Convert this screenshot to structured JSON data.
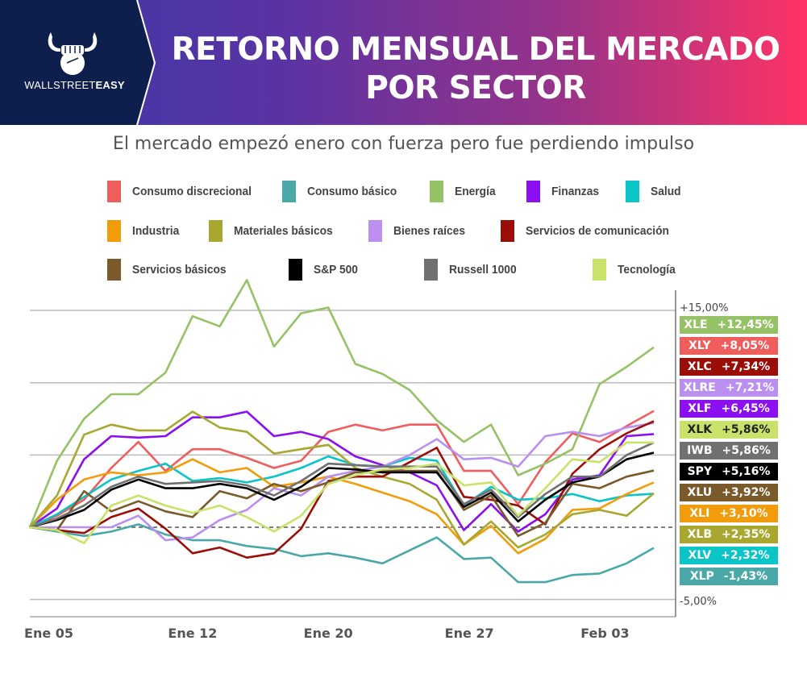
{
  "header": {
    "brand_prefix": "WALLSTREET",
    "brand_suffix": "EASY",
    "title_line1": "RETORNO MENSUAL DEL MERCADO",
    "title_line2": "POR SECTOR"
  },
  "chart_data": {
    "type": "line",
    "title": "RETORNO MENSUAL DEL MERCADO POR SECTOR",
    "subtitle": "El mercado empezó enero con fuerza pero fue perdiendo impulso",
    "xlabel": "",
    "ylabel": "",
    "ylim": [
      -5,
      15
    ],
    "y_tick_labels": [
      "+15,00%",
      "-5,00%"
    ],
    "gridlines": [
      -5,
      0,
      5,
      10,
      15
    ],
    "zero_line": "dashed",
    "x_tick_labels": [
      "Ene 05",
      "Ene 12",
      "Ene 20",
      "Ene 27",
      "Feb 03"
    ],
    "x_tick_indices": [
      0.7,
      6,
      11,
      16.2,
      21.2
    ],
    "num_points": 24,
    "legend_position": "top",
    "series": [
      {
        "name": "Consumo discrecional",
        "ticker": "XLY",
        "final": "+8,05%",
        "color": "#f05d5d",
        "values": [
          0,
          0.8,
          1.9,
          4.1,
          5.9,
          3.9,
          5.4,
          5.4,
          4.8,
          4.1,
          4.6,
          6.6,
          7.1,
          6.7,
          7.1,
          7.1,
          3.9,
          3.9,
          1.6,
          4.5,
          6.5,
          5.9,
          7.0,
          8.05
        ]
      },
      {
        "name": "Consumo básico",
        "ticker": "XLP",
        "final": "-1,43%",
        "color": "#4aa8a8",
        "values": [
          0,
          -0.3,
          -0.6,
          -0.3,
          0.2,
          -0.5,
          -0.9,
          -0.9,
          -1.3,
          -1.5,
          -2.0,
          -1.8,
          -2.1,
          -2.5,
          -1.6,
          -0.7,
          -2.2,
          -2.1,
          -3.8,
          -3.8,
          -3.3,
          -3.2,
          -2.5,
          -1.43
        ]
      },
      {
        "name": "Energía",
        "ticker": "XLE",
        "final": "+12,45%",
        "color": "#96c266",
        "values": [
          0,
          4.6,
          7.5,
          9.2,
          9.2,
          10.7,
          14.6,
          13.9,
          17.1,
          12.5,
          14.8,
          15.2,
          11.3,
          10.6,
          9.5,
          7.4,
          5.9,
          7.1,
          3.6,
          4.4,
          5.4,
          9.9,
          11.1,
          12.45
        ]
      },
      {
        "name": "Finanzas",
        "ticker": "XLF",
        "final": "+6,45%",
        "color": "#8b0ff0",
        "values": [
          0,
          1.3,
          4.7,
          6.3,
          6.2,
          6.3,
          7.6,
          7.6,
          8.0,
          6.3,
          6.6,
          6.1,
          4.9,
          4.3,
          3.8,
          2.9,
          -0.2,
          1.6,
          -0.3,
          0.9,
          3.3,
          3.6,
          6.3,
          6.45
        ]
      },
      {
        "name": "Salud",
        "ticker": "XLV",
        "final": "+2,32%",
        "color": "#0bc4c8",
        "values": [
          0,
          0.9,
          2.1,
          3.3,
          3.9,
          4.4,
          3.2,
          3.4,
          3.1,
          3.5,
          4.1,
          4.9,
          4.3,
          4.2,
          4.8,
          4.6,
          1.5,
          2.8,
          1.9,
          2.0,
          2.3,
          1.8,
          2.2,
          2.32
        ]
      },
      {
        "name": "Industria",
        "ticker": "XLI",
        "final": "+3,10%",
        "color": "#f29c0c",
        "values": [
          0,
          1.9,
          3.3,
          3.8,
          3.6,
          3.8,
          4.7,
          3.8,
          4.1,
          2.8,
          3.1,
          3.5,
          3.0,
          2.4,
          1.8,
          0.9,
          -1.2,
          0.1,
          -1.8,
          -0.8,
          1.2,
          1.3,
          2.3,
          3.1
        ]
      },
      {
        "name": "Materiales básicos",
        "ticker": "XLB",
        "final": "+2,35%",
        "color": "#a8a830",
        "values": [
          0,
          2.2,
          6.4,
          7.1,
          6.7,
          6.7,
          8.0,
          6.9,
          6.6,
          5.1,
          5.4,
          5.7,
          4.1,
          3.5,
          3.0,
          1.9,
          -1.2,
          0.4,
          -1.4,
          -0.5,
          0.9,
          1.2,
          0.8,
          2.35
        ]
      },
      {
        "name": "Bienes raíces",
        "ticker": "XLRE",
        "final": "+7,21%",
        "color": "#bb8ff0",
        "values": [
          0,
          0,
          0,
          0,
          0.8,
          -0.9,
          -0.7,
          0.5,
          1.2,
          2.7,
          2.2,
          3.5,
          3.9,
          4.2,
          5.0,
          6.1,
          4.7,
          4.8,
          4.2,
          6.3,
          6.6,
          6.3,
          6.9,
          7.21
        ]
      },
      {
        "name": "Servicios de comunicación",
        "ticker": "XLC",
        "final": "+7,34%",
        "color": "#9b0e08",
        "values": [
          0,
          -0.2,
          -0.4,
          0.7,
          1.3,
          -0.1,
          -1.8,
          -1.4,
          -2.1,
          -1.8,
          -0.1,
          3.2,
          3.5,
          3.5,
          4.5,
          5.5,
          2.1,
          1.9,
          1.5,
          0.2,
          3.7,
          5.4,
          6.5,
          7.34
        ]
      },
      {
        "name": "Servicios básicos",
        "ticker": "XLU",
        "final": "+3,92%",
        "color": "#7a5a2a",
        "values": [
          0,
          -0.2,
          2.5,
          1.1,
          1.8,
          1.1,
          0.7,
          2.5,
          2.0,
          3.0,
          2.5,
          3.1,
          3.8,
          3.9,
          3.9,
          3.9,
          1.2,
          2.2,
          -0.6,
          0.3,
          3.0,
          2.7,
          3.5,
          3.92
        ]
      },
      {
        "name": "S&P 500",
        "ticker": "SPY",
        "final": "+5,16%",
        "color": "#000000",
        "values": [
          0,
          0.5,
          1.2,
          2.6,
          3.3,
          2.7,
          2.7,
          3.0,
          2.7,
          1.9,
          2.8,
          4.1,
          4.0,
          3.8,
          3.8,
          3.8,
          1.4,
          2.4,
          0.4,
          1.9,
          3.1,
          3.5,
          4.7,
          5.16
        ]
      },
      {
        "name": "Russell 1000",
        "ticker": "IWB",
        "final": "+5,86%",
        "color": "#707070",
        "values": [
          0,
          0.6,
          1.5,
          2.8,
          3.5,
          3.0,
          3.1,
          3.2,
          2.9,
          2.2,
          3.2,
          4.4,
          4.3,
          4.2,
          4.2,
          4.2,
          1.6,
          2.6,
          0.7,
          2.3,
          3.5,
          3.5,
          5.0,
          5.86
        ]
      },
      {
        "name": "Tecnología",
        "ticker": "XLK",
        "final": "+5,86%",
        "color": "#c8e26a",
        "values": [
          0,
          -0.2,
          -1.1,
          1.5,
          2.2,
          1.5,
          1.0,
          1.5,
          0.7,
          -0.3,
          0.8,
          3.0,
          3.6,
          4.0,
          4.1,
          4.4,
          2.9,
          3.1,
          0.8,
          2.7,
          4.7,
          4.5,
          5.86,
          5.86
        ]
      }
    ],
    "badges_order": [
      "XLE",
      "XLY",
      "XLC",
      "XLRE",
      "XLF",
      "XLK",
      "IWB",
      "SPY",
      "XLU",
      "XLI",
      "XLB",
      "XLV",
      "XLP"
    ]
  }
}
